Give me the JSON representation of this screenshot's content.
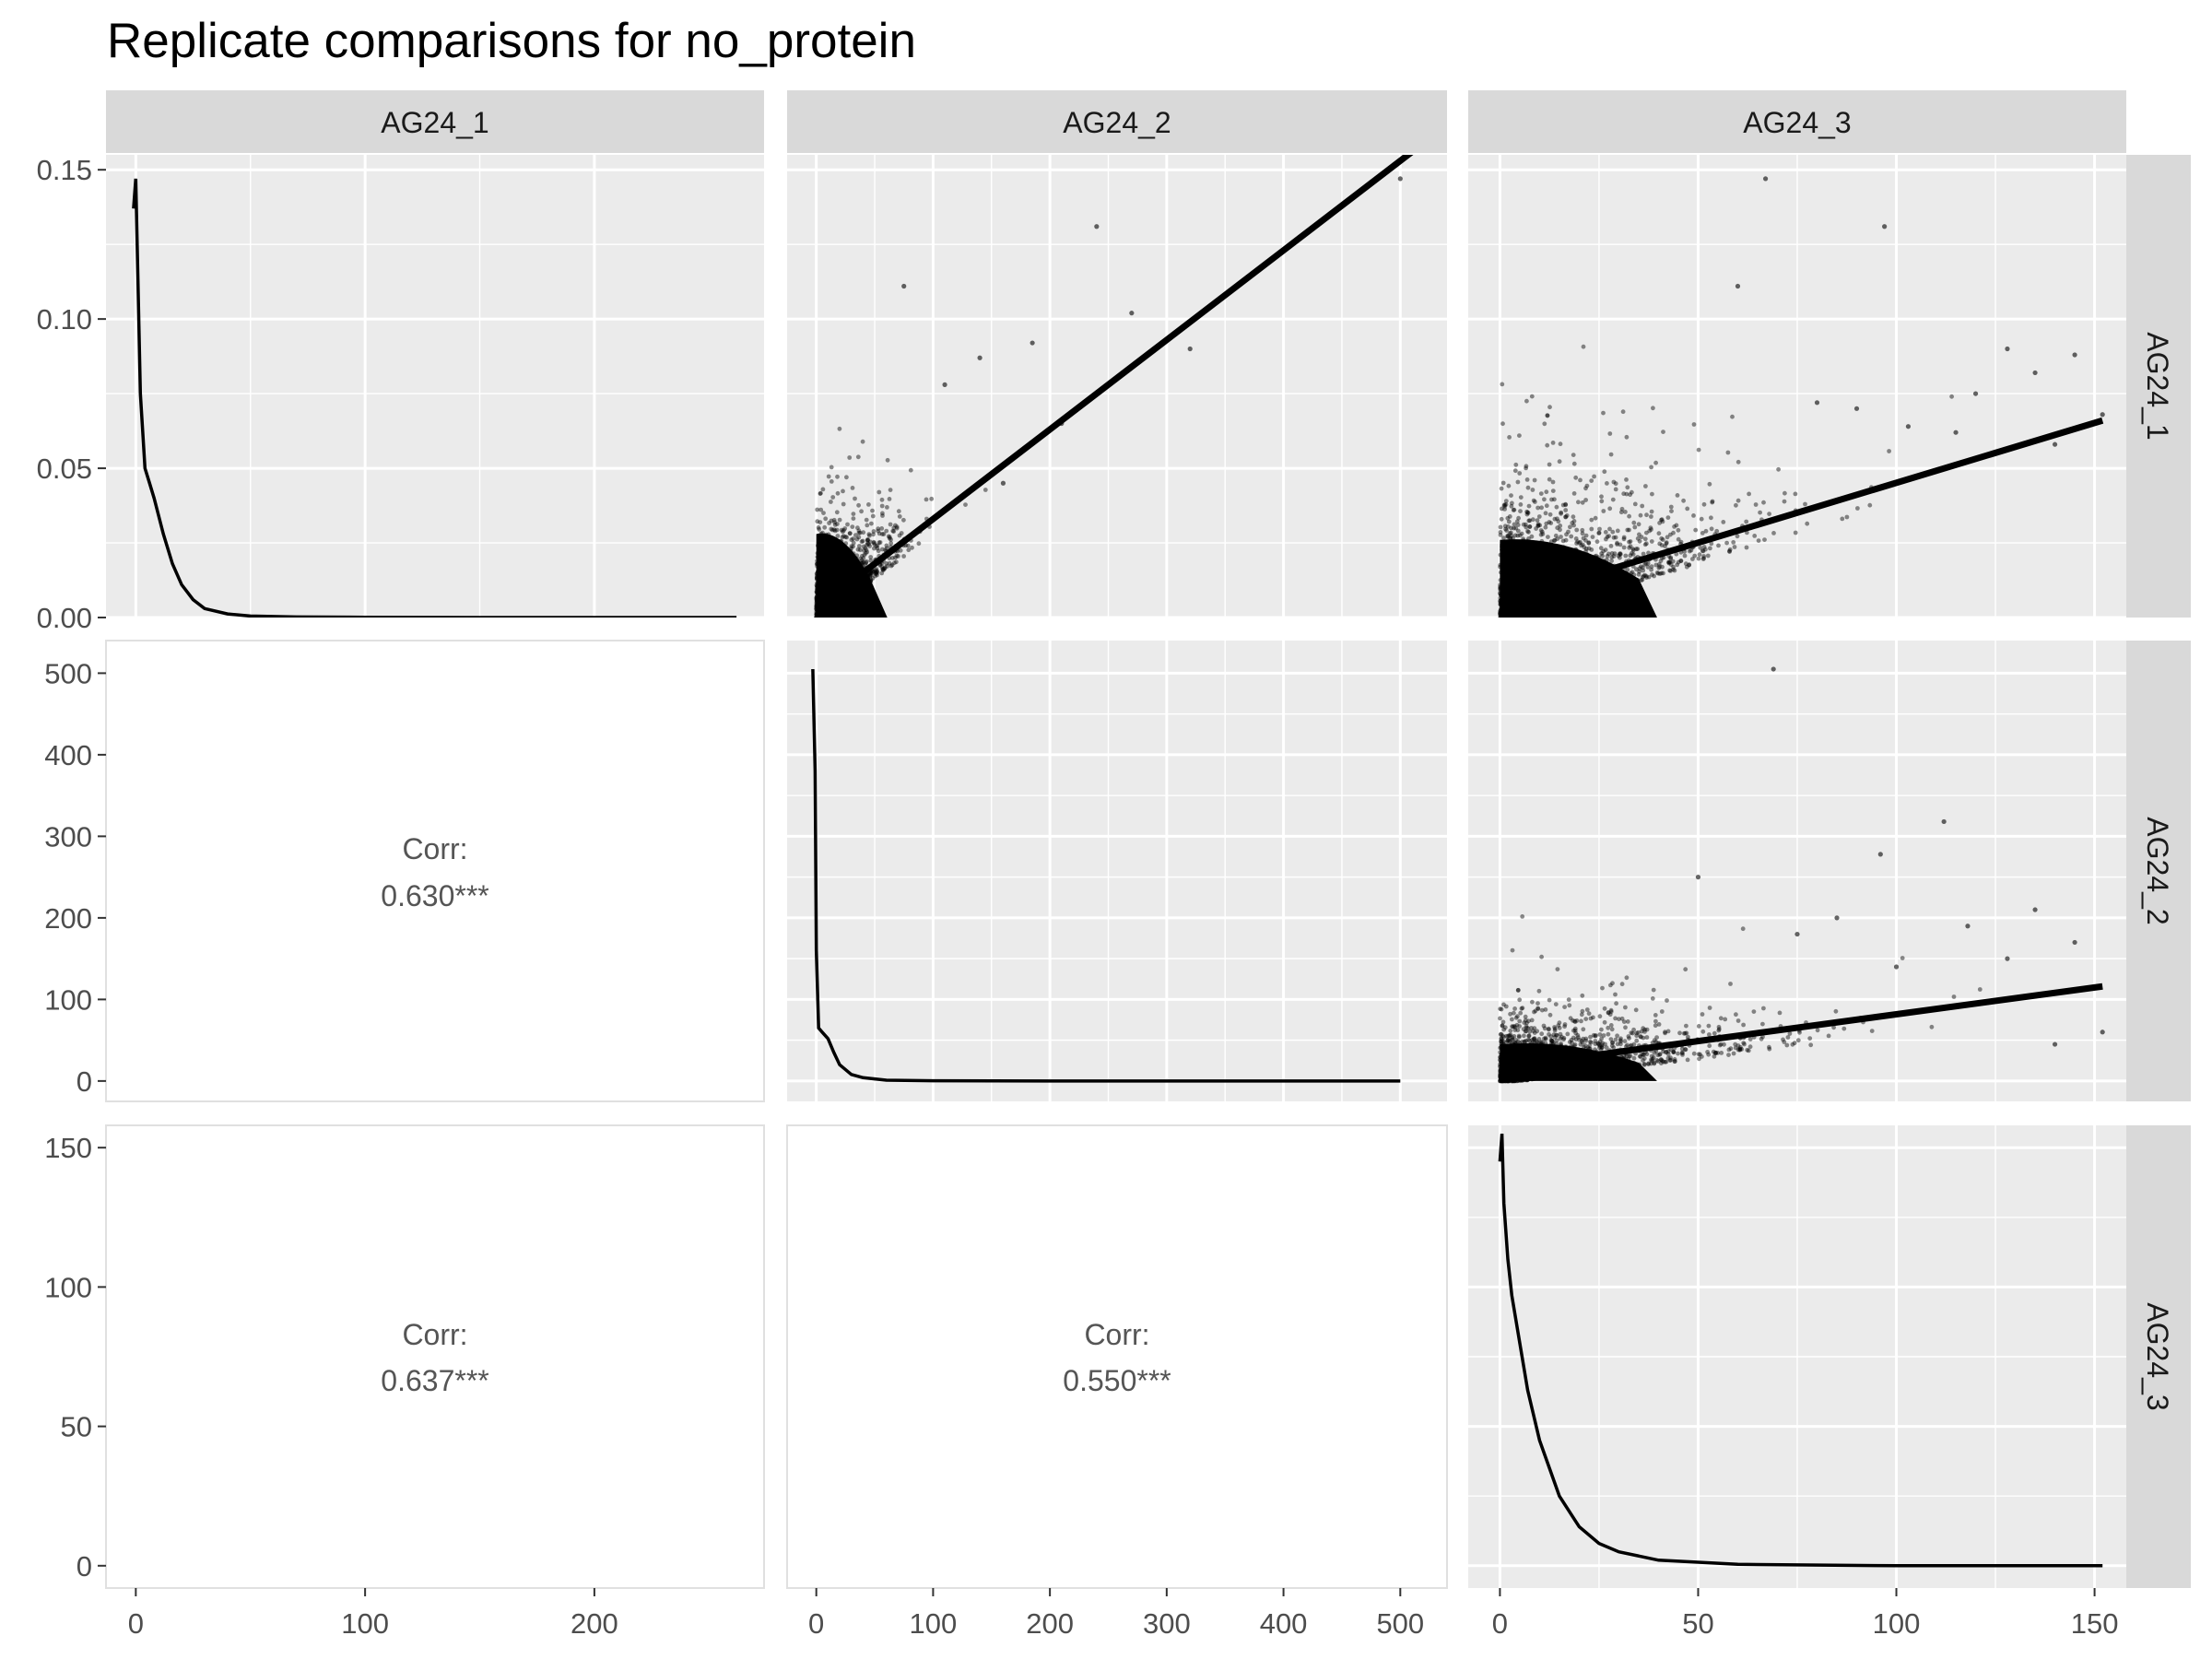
{
  "chart_data": {
    "type": "scatter-matrix",
    "title": "Replicate comparisons for no_protein",
    "variables": [
      "AG24_1",
      "AG24_2",
      "AG24_3"
    ],
    "axes": {
      "AG24_1": {
        "density_ticks": [
          0.0,
          0.05,
          0.1,
          0.15
        ],
        "density_tick_labels": [
          "0.00",
          "0.05",
          "0.10",
          "0.15"
        ],
        "density_range": [
          0,
          0.155
        ],
        "x_ticks": [
          0,
          100,
          200
        ],
        "x_range": [
          -13,
          274
        ]
      },
      "AG24_2": {
        "ticks": [
          0,
          100,
          200,
          300,
          400,
          500
        ],
        "range": [
          -25,
          540
        ]
      },
      "AG24_3": {
        "ticks": [
          0,
          50,
          100,
          150
        ],
        "range": [
          -8,
          158
        ]
      }
    },
    "correlations": [
      {
        "x": "AG24_1",
        "y": "AG24_2",
        "label": "Corr:",
        "value": "0.630***"
      },
      {
        "x": "AG24_1",
        "y": "AG24_3",
        "label": "Corr:",
        "value": "0.637***"
      },
      {
        "x": "AG24_2",
        "y": "AG24_3",
        "label": "Corr:",
        "value": "0.550***"
      }
    ],
    "densities": {
      "AG24_1": {
        "x": [
          -1,
          0,
          2,
          4,
          6,
          8,
          12,
          16,
          20,
          25,
          30,
          40,
          50,
          70,
          100,
          150,
          200,
          262
        ],
        "y": [
          0.137,
          0.147,
          0.075,
          0.05,
          0.045,
          0.04,
          0.028,
          0.018,
          0.011,
          0.006,
          0.003,
          0.0012,
          0.0005,
          0.0002,
          0.0001,
          0,
          0,
          0
        ]
      },
      "AG24_2": {
        "x": [
          -3,
          -1,
          0,
          2,
          5,
          10,
          15,
          20,
          30,
          40,
          60,
          100,
          200,
          300,
          500
        ],
        "y": [
          505,
          380,
          160,
          65,
          60,
          52,
          35,
          20,
          8,
          4,
          1,
          0.3,
          0,
          0,
          0
        ]
      },
      "AG24_3": {
        "x": [
          0,
          0.5,
          1,
          2,
          3,
          5,
          7,
          10,
          15,
          20,
          25,
          30,
          40,
          60,
          100,
          152
        ],
        "y": [
          145,
          155,
          130,
          110,
          97,
          80,
          63,
          45,
          25,
          14,
          8,
          5,
          2,
          0.5,
          0,
          0
        ]
      }
    },
    "fit_lines": [
      {
        "x": "AG24_2",
        "y": "AG24_1",
        "x_range": [
          0,
          510
        ],
        "y_start": 0.003,
        "slope": 0.0003
      }
    ],
    "fits": {
      "AG24_2_vs_AG24_1": {
        "x0": 0,
        "y0": 0.003,
        "x1": 510,
        "y1": 0.156
      },
      "AG24_3_vs_AG24_1": {
        "x0": 0,
        "y0": 0.005,
        "x1": 152,
        "y1": 0.066
      },
      "AG24_3_vs_AG24_2": {
        "x0": 0,
        "y0": 16,
        "x1": 152,
        "y1": 116
      }
    },
    "scatter_outliers": {
      "AG24_2_vs_AG24_1": [
        [
          500,
          0.147
        ],
        [
          240,
          0.131
        ],
        [
          75,
          0.111
        ],
        [
          270,
          0.102
        ],
        [
          320,
          0.09
        ],
        [
          185,
          0.092
        ],
        [
          140,
          0.087
        ],
        [
          210,
          0.065
        ],
        [
          160,
          0.045
        ],
        [
          110,
          0.078
        ]
      ],
      "AG24_3_vs_AG24_1": [
        [
          67,
          0.147
        ],
        [
          97,
          0.131
        ],
        [
          60,
          0.111
        ],
        [
          128,
          0.09
        ],
        [
          145,
          0.088
        ],
        [
          135,
          0.082
        ],
        [
          120,
          0.075
        ],
        [
          152,
          0.068
        ],
        [
          140,
          0.058
        ],
        [
          115,
          0.062
        ],
        [
          103,
          0.064
        ],
        [
          90,
          0.07
        ],
        [
          80,
          0.072
        ]
      ],
      "AG24_3_vs_AG24_2": [
        [
          69,
          505
        ],
        [
          112,
          318
        ],
        [
          96,
          278
        ],
        [
          50,
          250
        ],
        [
          135,
          210
        ],
        [
          118,
          190
        ],
        [
          145,
          170
        ],
        [
          128,
          150
        ],
        [
          152,
          60
        ],
        [
          140,
          45
        ],
        [
          100,
          140
        ],
        [
          85,
          200
        ],
        [
          75,
          180
        ]
      ]
    }
  },
  "strips": {
    "top": [
      "AG24_1",
      "AG24_2",
      "AG24_3"
    ],
    "right": [
      "AG24_1",
      "AG24_2",
      "AG24_3"
    ]
  },
  "colors": {
    "panel_bg": "#ebebeb",
    "strip_bg": "#d9d9d9",
    "grid": "#ffffff",
    "points": "#000000",
    "line": "#000000"
  }
}
